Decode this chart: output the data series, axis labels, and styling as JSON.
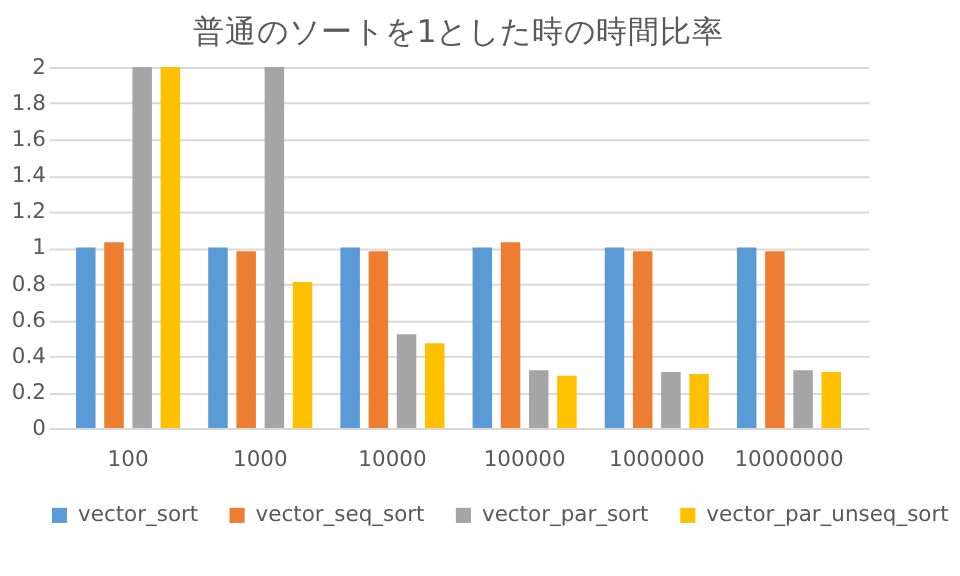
{
  "chart_data": {
    "type": "bar",
    "title": "普通のソートを1とした時の時間比率",
    "categories": [
      "100",
      "1000",
      "10000",
      "100000",
      "1000000",
      "10000000"
    ],
    "series": [
      {
        "name": "vector_sort",
        "color": "#5b9bd5",
        "values": [
          1.0,
          1.0,
          1.0,
          1.0,
          1.0,
          1.0
        ]
      },
      {
        "name": "vector_seq_sort",
        "color": "#ed7d31",
        "values": [
          1.03,
          0.98,
          0.98,
          1.03,
          0.98,
          0.98
        ]
      },
      {
        "name": "vector_par_sort",
        "color": "#a5a5a5",
        "values": [
          2,
          2,
          0.52,
          0.32,
          0.31,
          0.32
        ]
      },
      {
        "name": "vector_par_unseq_sort",
        "color": "#ffc000",
        "values": [
          2,
          0.81,
          0.47,
          0.29,
          0.3,
          0.31
        ]
      }
    ],
    "ylim": [
      0,
      2
    ],
    "yticks": [
      0,
      0.2,
      0.4,
      0.6,
      0.8,
      1,
      1.2,
      1.4,
      1.6,
      1.8,
      2
    ],
    "grid": "y",
    "legend": "bottom"
  }
}
